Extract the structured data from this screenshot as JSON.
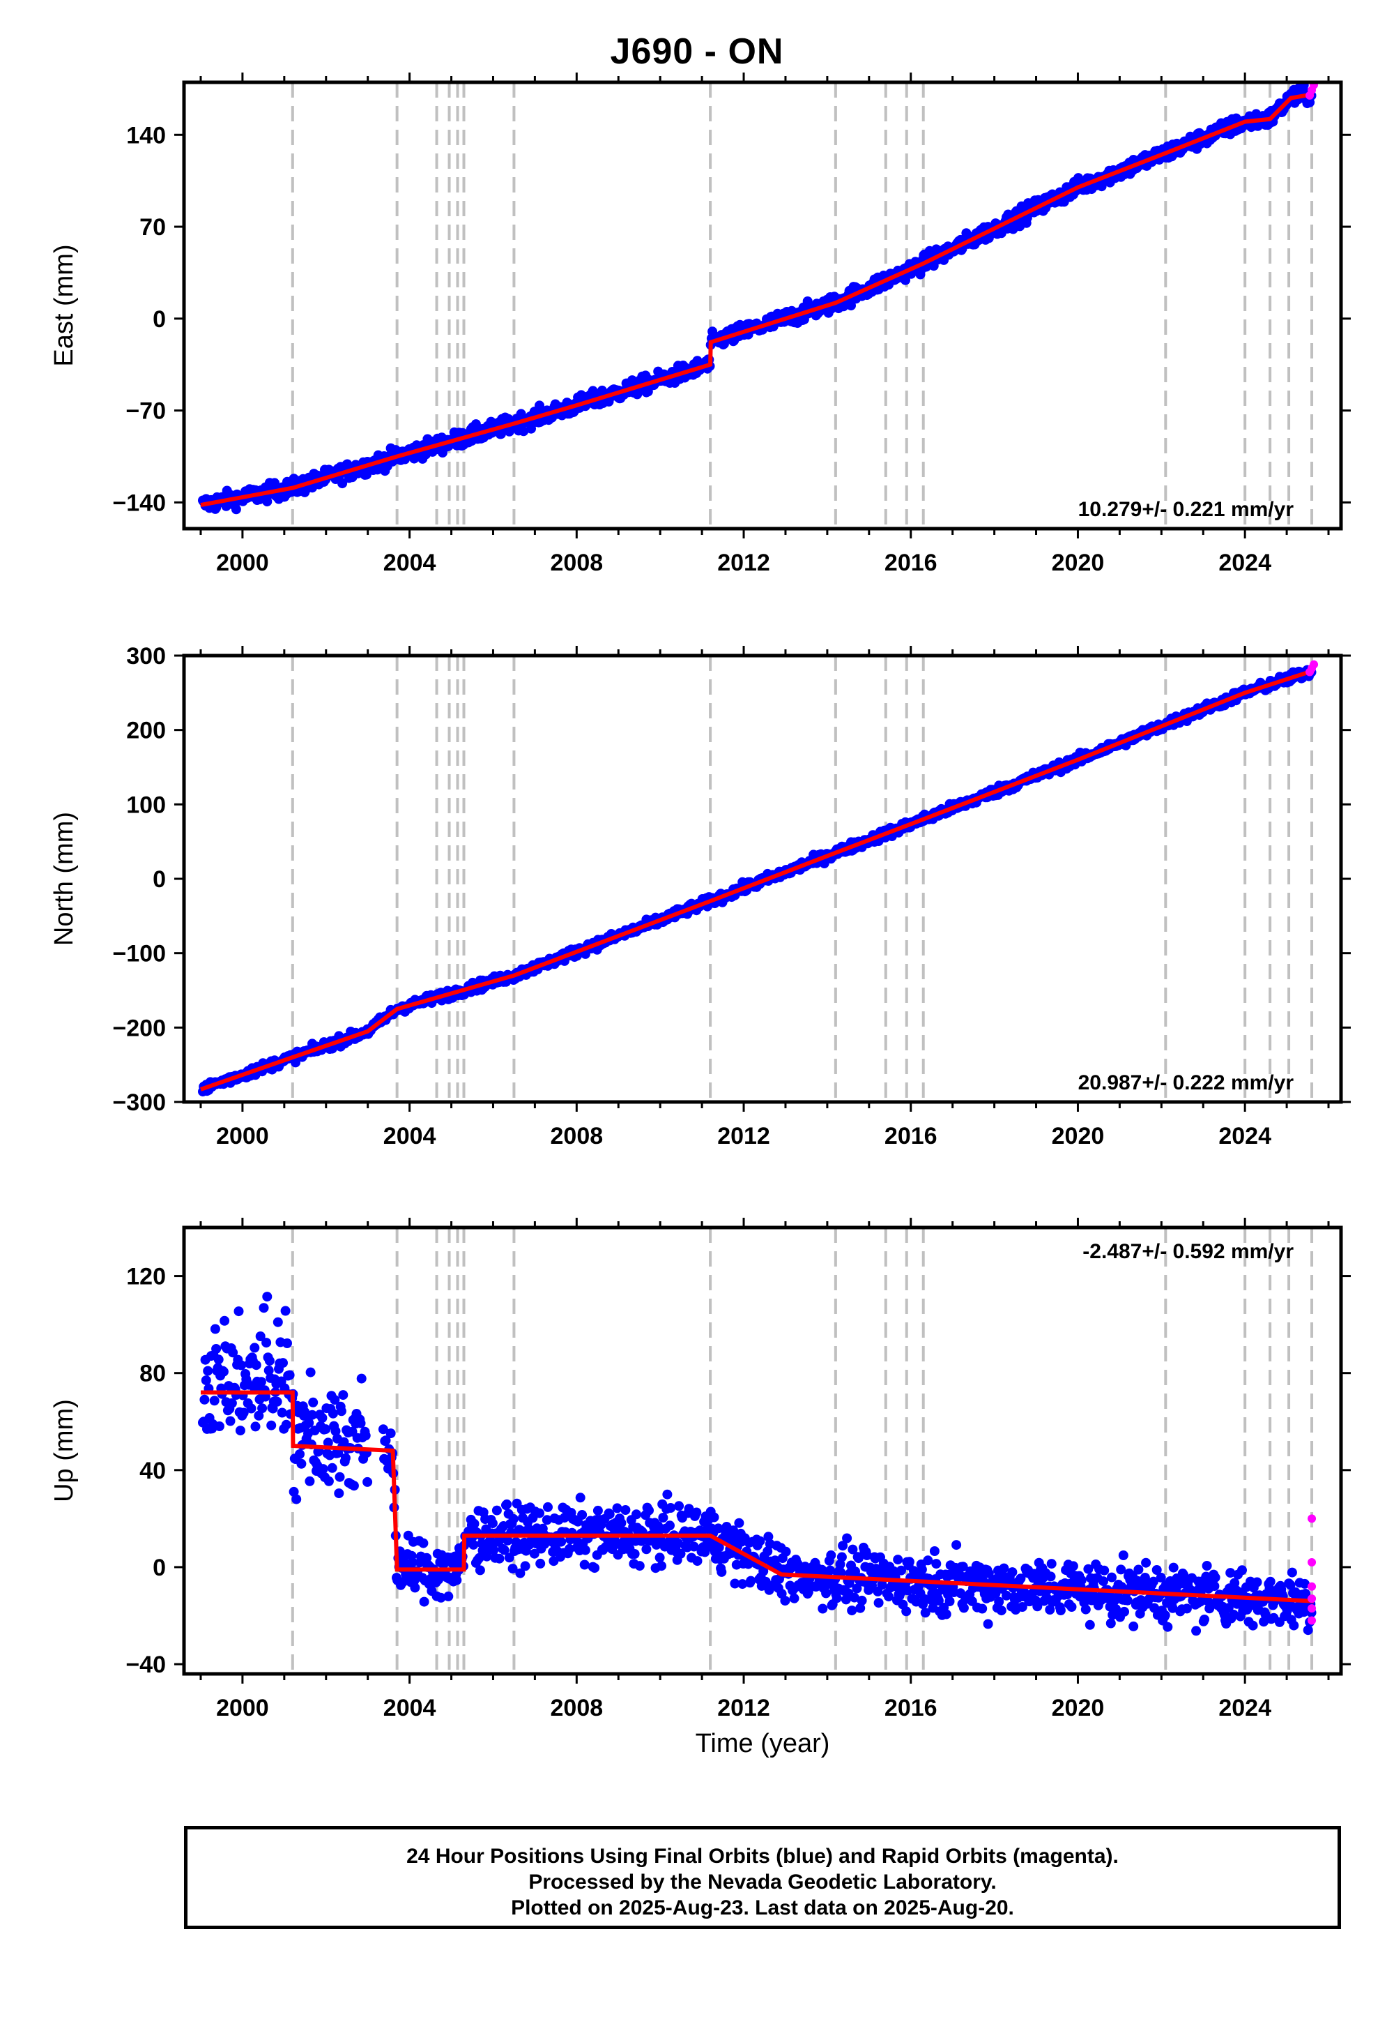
{
  "title": "J690 - ON",
  "x_axis_label": "Time (year)",
  "x_ticks": [
    2000,
    2004,
    2008,
    2012,
    2016,
    2020,
    2024
  ],
  "event_lines": [
    2001.2,
    2003.7,
    2004.65,
    2004.95,
    2005.15,
    2005.3,
    2006.5,
    2011.2,
    2014.2,
    2015.4,
    2015.9,
    2016.3,
    2022.1,
    2024.0,
    2024.6,
    2025.05,
    2025.6
  ],
  "colors": {
    "final_orbits": "#0000ff",
    "rapid_orbits": "#ff00ff",
    "model": "#ff0000",
    "event_line": "#c0c0c0"
  },
  "chart_data": [
    {
      "type": "scatter",
      "component": "East",
      "ylabel": "East (mm)",
      "xlim": [
        1998.6,
        2026.3
      ],
      "ylim": [
        -160,
        180
      ],
      "yticks": [
        -140,
        -70,
        0,
        70,
        140
      ],
      "rate_label": "10.279+/- 0.221 mm/yr",
      "rate_position": "bottom-right",
      "model": [
        [
          1999.0,
          -142
        ],
        [
          2001.2,
          -129
        ],
        [
          2003.7,
          -105
        ],
        [
          2006.5,
          -80
        ],
        [
          2008,
          -66
        ],
        [
          2011.2,
          -35
        ],
        [
          2011.21,
          -18
        ],
        [
          2014.2,
          12
        ],
        [
          2016.3,
          42
        ],
        [
          2020,
          100
        ],
        [
          2022.1,
          126
        ],
        [
          2024,
          150
        ],
        [
          2024.6,
          152
        ],
        [
          2025.1,
          168
        ],
        [
          2025.65,
          171
        ]
      ],
      "rapid": [
        [
          2025.55,
          170
        ],
        [
          2025.6,
          174
        ],
        [
          2025.65,
          178
        ]
      ]
    },
    {
      "type": "scatter",
      "component": "North",
      "ylabel": "North (mm)",
      "xlim": [
        1998.6,
        2026.3
      ],
      "ylim": [
        -300,
        300
      ],
      "yticks": [
        -300,
        -200,
        -100,
        0,
        100,
        200,
        300
      ],
      "rate_label": "20.987+/- 0.222 mm/yr",
      "rate_position": "bottom-right",
      "model": [
        [
          1999.0,
          -283
        ],
        [
          2001.2,
          -240
        ],
        [
          2003.0,
          -205
        ],
        [
          2003.7,
          -175
        ],
        [
          2006.5,
          -130
        ],
        [
          2011.2,
          -30
        ],
        [
          2014.2,
          35
        ],
        [
          2016.3,
          80
        ],
        [
          2020,
          160
        ],
        [
          2024,
          250
        ],
        [
          2025.65,
          280
        ]
      ],
      "rapid": [
        [
          2025.55,
          278
        ],
        [
          2025.6,
          283
        ],
        [
          2025.65,
          288
        ]
      ]
    },
    {
      "type": "scatter",
      "component": "Up",
      "ylabel": "Up (mm)",
      "xlim": [
        1998.6,
        2026.3
      ],
      "ylim": [
        -44,
        140
      ],
      "yticks": [
        -40,
        0,
        40,
        80,
        120
      ],
      "rate_label": "-2.487+/- 0.592 mm/yr",
      "rate_position": "top-right",
      "model": [
        [
          1999.0,
          72
        ],
        [
          2001.2,
          72
        ],
        [
          2001.21,
          50
        ],
        [
          2003.6,
          48
        ],
        [
          2003.7,
          -1
        ],
        [
          2005.3,
          -1
        ],
        [
          2005.31,
          13
        ],
        [
          2011.2,
          13
        ],
        [
          2012.9,
          -3
        ],
        [
          2025.65,
          -14
        ]
      ],
      "rapid": [
        [
          2025.6,
          20
        ],
        [
          2025.6,
          2
        ],
        [
          2025.6,
          -8
        ],
        [
          2025.6,
          -13
        ],
        [
          2025.6,
          -17
        ],
        [
          2025.6,
          -22
        ]
      ]
    }
  ],
  "caption": {
    "line1": "24 Hour Positions Using Final Orbits (blue) and Rapid Orbits (magenta).",
    "line2": "Processed by the Nevada Geodetic Laboratory.",
    "line3": "Plotted on 2025-Aug-23. Last data on 2025-Aug-20."
  }
}
